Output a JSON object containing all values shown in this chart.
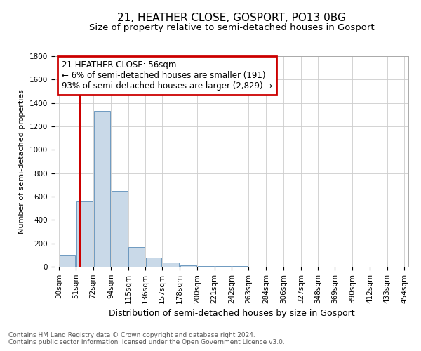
{
  "title1": "21, HEATHER CLOSE, GOSPORT, PO13 0BG",
  "title2": "Size of property relative to semi-detached houses in Gosport",
  "xlabel": "Distribution of semi-detached houses by size in Gosport",
  "ylabel": "Number of semi-detached properties",
  "footnote1": "Contains HM Land Registry data © Crown copyright and database right 2024.",
  "footnote2": "Contains public sector information licensed under the Open Government Licence v3.0.",
  "annotation_line1": "21 HEATHER CLOSE: 56sqm",
  "annotation_line2": "← 6% of semi-detached houses are smaller (191)",
  "annotation_line3": "93% of semi-detached houses are larger (2,829) →",
  "property_size": 56,
  "bin_edges": [
    30,
    51,
    72,
    94,
    115,
    136,
    157,
    178,
    200,
    221,
    242,
    263,
    284,
    306,
    327,
    348,
    369,
    390,
    412,
    433,
    454
  ],
  "bar_heights": [
    100,
    560,
    1330,
    650,
    170,
    80,
    35,
    15,
    8,
    5,
    4,
    3,
    2,
    2,
    1,
    1,
    1,
    0,
    0,
    0
  ],
  "bar_color": "#c9d9e8",
  "bar_edge_color": "#5b8db8",
  "vline_color": "#cc0000",
  "annotation_box_color": "#cc0000",
  "grid_color": "#cccccc",
  "ylim": [
    0,
    1800
  ],
  "yticks": [
    0,
    200,
    400,
    600,
    800,
    1000,
    1200,
    1400,
    1600,
    1800
  ],
  "background_color": "#ffffff",
  "title1_fontsize": 11,
  "title2_fontsize": 9.5,
  "xlabel_fontsize": 9,
  "ylabel_fontsize": 8,
  "tick_fontsize": 7.5,
  "annotation_fontsize": 8.5,
  "footnote_fontsize": 6.5
}
